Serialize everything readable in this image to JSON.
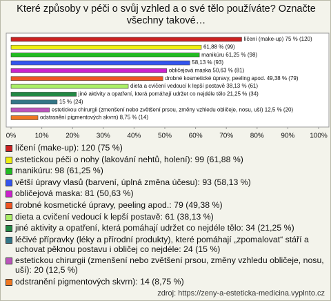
{
  "chart_data": {
    "type": "bar",
    "orientation": "horizontal",
    "title": "Které způsoby v péči o svůj vzhled a o své tělo používáte? Označte všechny takové…",
    "values": [
      75,
      61.88,
      61.25,
      58.13,
      50.63,
      49.38,
      38.13,
      21.25,
      15,
      12.5,
      8.75
    ],
    "value_labels": [
      "líčení (make-up) 75 % (120)",
      "61,88 % (99)",
      "manikúru 61,25 % (98)",
      "58,13 % (93)",
      "obličejová maska 50,63 % (81)",
      "drobné kosmetické úpravy, peeling apod. 49,38 % (79)",
      "dieta a cvičení vedoucí k lepší postavě 38,13 % (61)",
      "jiné aktivity a opatření, která pomáhají udržet co nejdéle tělo 21,25 % (34)",
      "15 % (24)",
      "estetickou chirurgii (zmenšení nebo zvětšení prsou, změny vzhledu obličeje, nosu, uší) 12,5 % (20)",
      "odstranění pigmentových skvrn) 8,75 % (14)"
    ],
    "colors": [
      "#cc2222",
      "#eeee11",
      "#22bb22",
      "#3355ee",
      "#cc22cc",
      "#ee5522",
      "#aaee66",
      "#228844",
      "#337788",
      "#bb55bb",
      "#ee7722"
    ],
    "legend": [
      "líčení (make-up): 120 (75 %)",
      "estetickou péči o nohy (lakování nehtů, holení): 99 (61,88 %)",
      "manikúru: 98 (61,25 %)",
      "větší úpravy vlasů (barvení, úplná změna účesu): 93 (58,13 %)",
      "obličejová maska: 81 (50,63 %)",
      "drobné kosmetické úpravy, peeling apod.: 79 (49,38 %)",
      "dieta a cvičení vedoucí k lepší postavě: 61 (38,13 %)",
      "jiné aktivity a opatření, která pomáhají udržet co nejdéle tělo: 34 (21,25 %)",
      "léčivé přípravky (léky a přírodní produkty), které pomáhají „zpomalovat“ stáří a uchovat pěknou postavu i obličej co nejdéle: 24 (15 %)",
      "estetickou chirurgii (zmenšení nebo zvětšení prsou, změny vzhledu obličeje, nosu, uší): 20 (12,5 %)",
      "odstranění pigmentových skvrn): 14 (8,75 %)"
    ],
    "xlim": [
      0,
      100
    ],
    "xticks": [
      {
        "value": 0,
        "label": "0%"
      },
      {
        "value": 10,
        "label": "10%"
      },
      {
        "value": 20,
        "label": "20%"
      },
      {
        "value": 30,
        "label": "30%"
      },
      {
        "value": 40,
        "label": "40%"
      },
      {
        "value": 50,
        "label": "50%"
      },
      {
        "value": 60,
        "label": "60%"
      },
      {
        "value": 70,
        "label": "70%"
      },
      {
        "value": 80,
        "label": "80%"
      },
      {
        "value": 90,
        "label": "90%"
      },
      {
        "value": 100,
        "label": "100%"
      }
    ],
    "source": "zdroj: https://zeny-a-esteticka-medicina.vyplnto.cz"
  }
}
